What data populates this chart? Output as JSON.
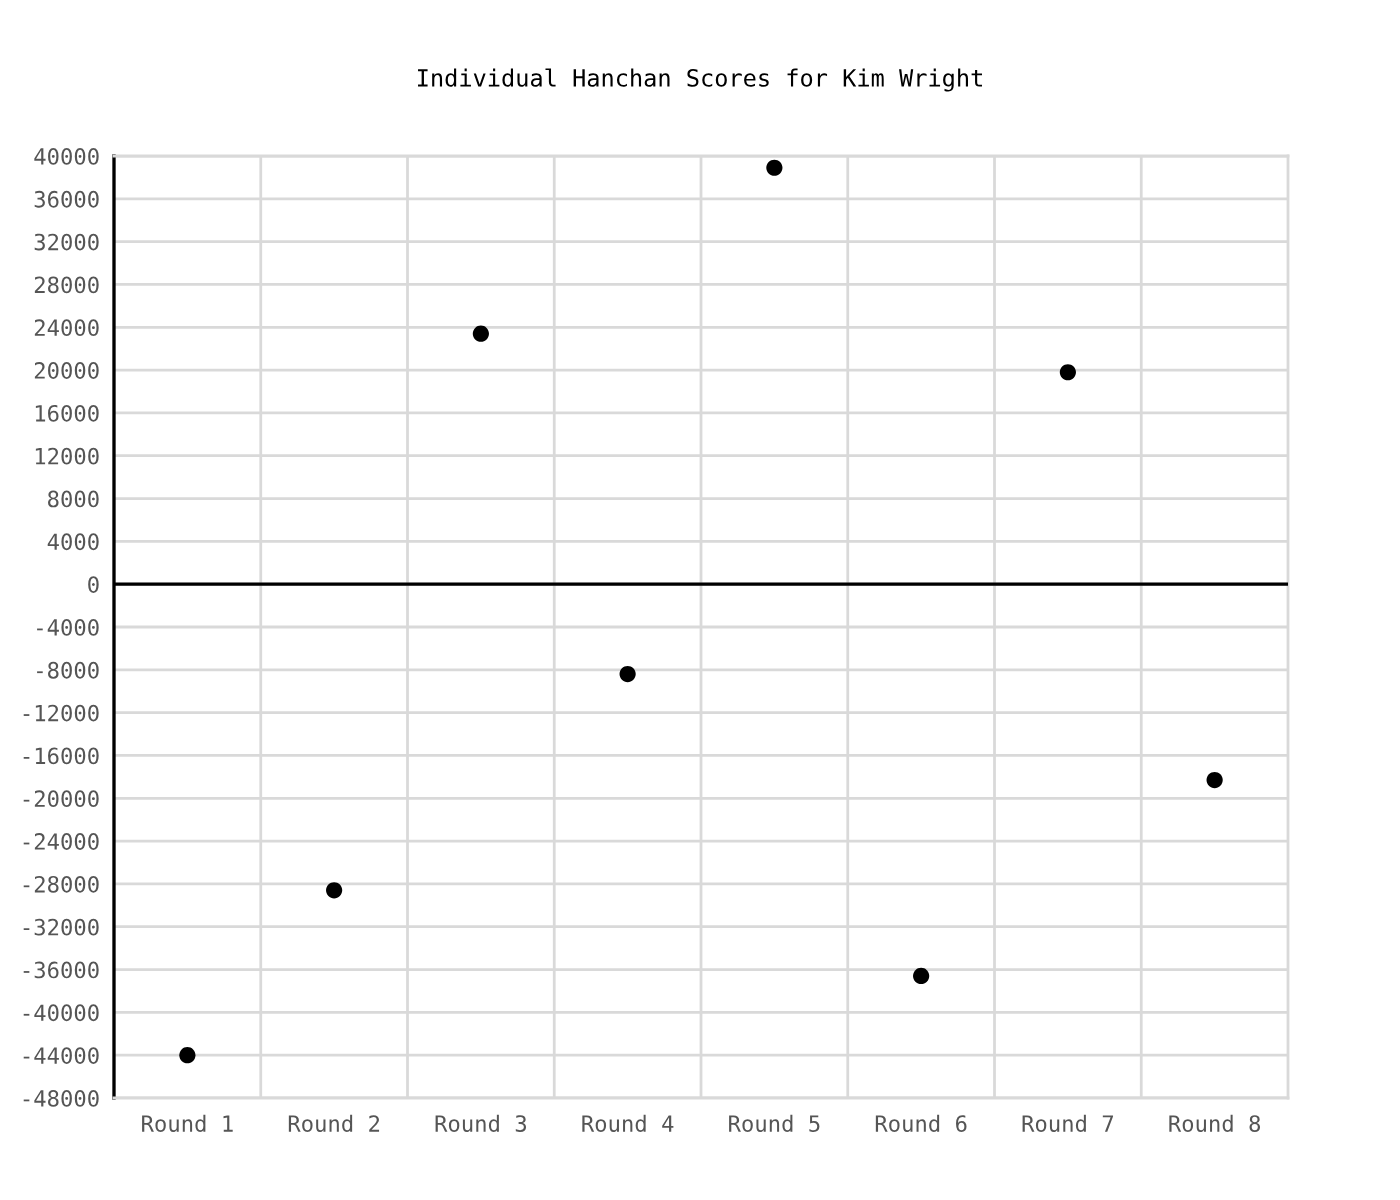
{
  "chart_data": {
    "type": "scatter",
    "title": "Individual Hanchan Scores for Kim Wright",
    "categories": [
      "Round 1",
      "Round 2",
      "Round 3",
      "Round 4",
      "Round 5",
      "Round 6",
      "Round 7",
      "Round 8"
    ],
    "series": [
      {
        "color": "#000000",
        "values": [
          -44000,
          -28600,
          23400,
          -8400,
          38900,
          -36600,
          19800,
          -18300
        ]
      }
    ],
    "ylim": [
      -48000,
      40000
    ],
    "yticks": [
      -48000,
      -44000,
      -40000,
      -36000,
      -32000,
      -28000,
      -24000,
      -20000,
      -16000,
      -12000,
      -8000,
      -4000,
      0,
      4000,
      8000,
      12000,
      16000,
      20000,
      24000,
      28000,
      32000,
      36000,
      40000
    ],
    "ref_lines": [
      {
        "axis": "y",
        "value": 0,
        "color": "#000000"
      }
    ],
    "grid": true,
    "marker": "circle"
  }
}
